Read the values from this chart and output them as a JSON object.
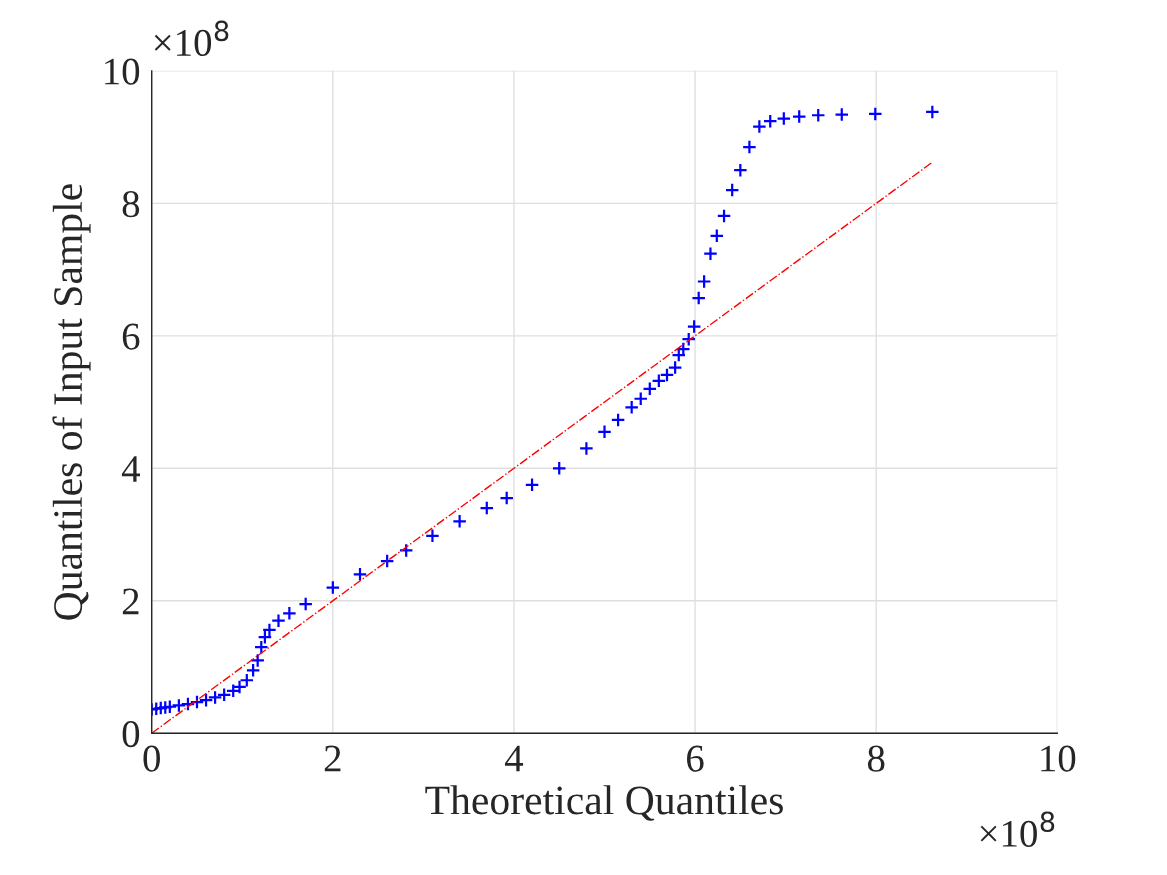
{
  "chart_data": {
    "type": "scatter",
    "xlabel": "Theoretical Quantiles",
    "ylabel": "Quantiles of Input Sample",
    "xlim": [
      0,
      10
    ],
    "ylim": [
      0,
      10
    ],
    "xticks": [
      0,
      2,
      4,
      6,
      8,
      10
    ],
    "yticks": [
      0,
      2,
      4,
      6,
      8,
      10
    ],
    "grid": true,
    "annotations": [
      "×10$^{8}$",
      "×10$^{8}$"
    ],
    "series": [
      {
        "marker": "cross",
        "color": "#0000ff",
        "x": [
          0,
          0.05,
          0.1,
          0.15,
          0.2,
          0.3,
          0.4,
          0.5,
          0.6,
          0.7,
          0.8,
          0.9,
          0.97,
          1.05,
          1.12,
          1.17,
          1.21,
          1.25,
          1.3,
          1.4,
          1.52,
          1.7,
          2.0,
          2.3,
          2.6,
          2.81,
          3.1,
          3.4,
          3.7,
          3.92,
          4.2,
          4.5,
          4.8,
          5.0,
          5.15,
          5.3,
          5.4,
          5.5,
          5.6,
          5.69,
          5.78,
          5.82,
          5.87,
          5.93,
          5.99,
          6.04,
          6.1,
          6.17,
          6.24,
          6.32,
          6.41,
          6.5,
          6.6,
          6.71,
          6.83,
          6.98,
          7.15,
          7.36,
          7.62,
          7.99,
          8.62
        ],
        "values": [
          0.36,
          0.37,
          0.38,
          0.39,
          0.4,
          0.42,
          0.44,
          0.47,
          0.5,
          0.54,
          0.58,
          0.64,
          0.7,
          0.8,
          0.95,
          1.1,
          1.3,
          1.45,
          1.56,
          1.7,
          1.81,
          1.95,
          2.2,
          2.4,
          2.6,
          2.76,
          2.98,
          3.2,
          3.4,
          3.55,
          3.75,
          4.0,
          4.3,
          4.55,
          4.73,
          4.92,
          5.05,
          5.2,
          5.32,
          5.41,
          5.52,
          5.71,
          5.8,
          5.95,
          6.14,
          6.57,
          6.82,
          7.24,
          7.51,
          7.81,
          8.2,
          8.5,
          8.85,
          9.16,
          9.24,
          9.28,
          9.31,
          9.33,
          9.34,
          9.35,
          9.38
        ]
      },
      {
        "type": "line",
        "color": "#ff0000",
        "line_style": "dashed",
        "x": [
          0,
          8.62
        ],
        "values": [
          0,
          8.62
        ]
      }
    ]
  }
}
